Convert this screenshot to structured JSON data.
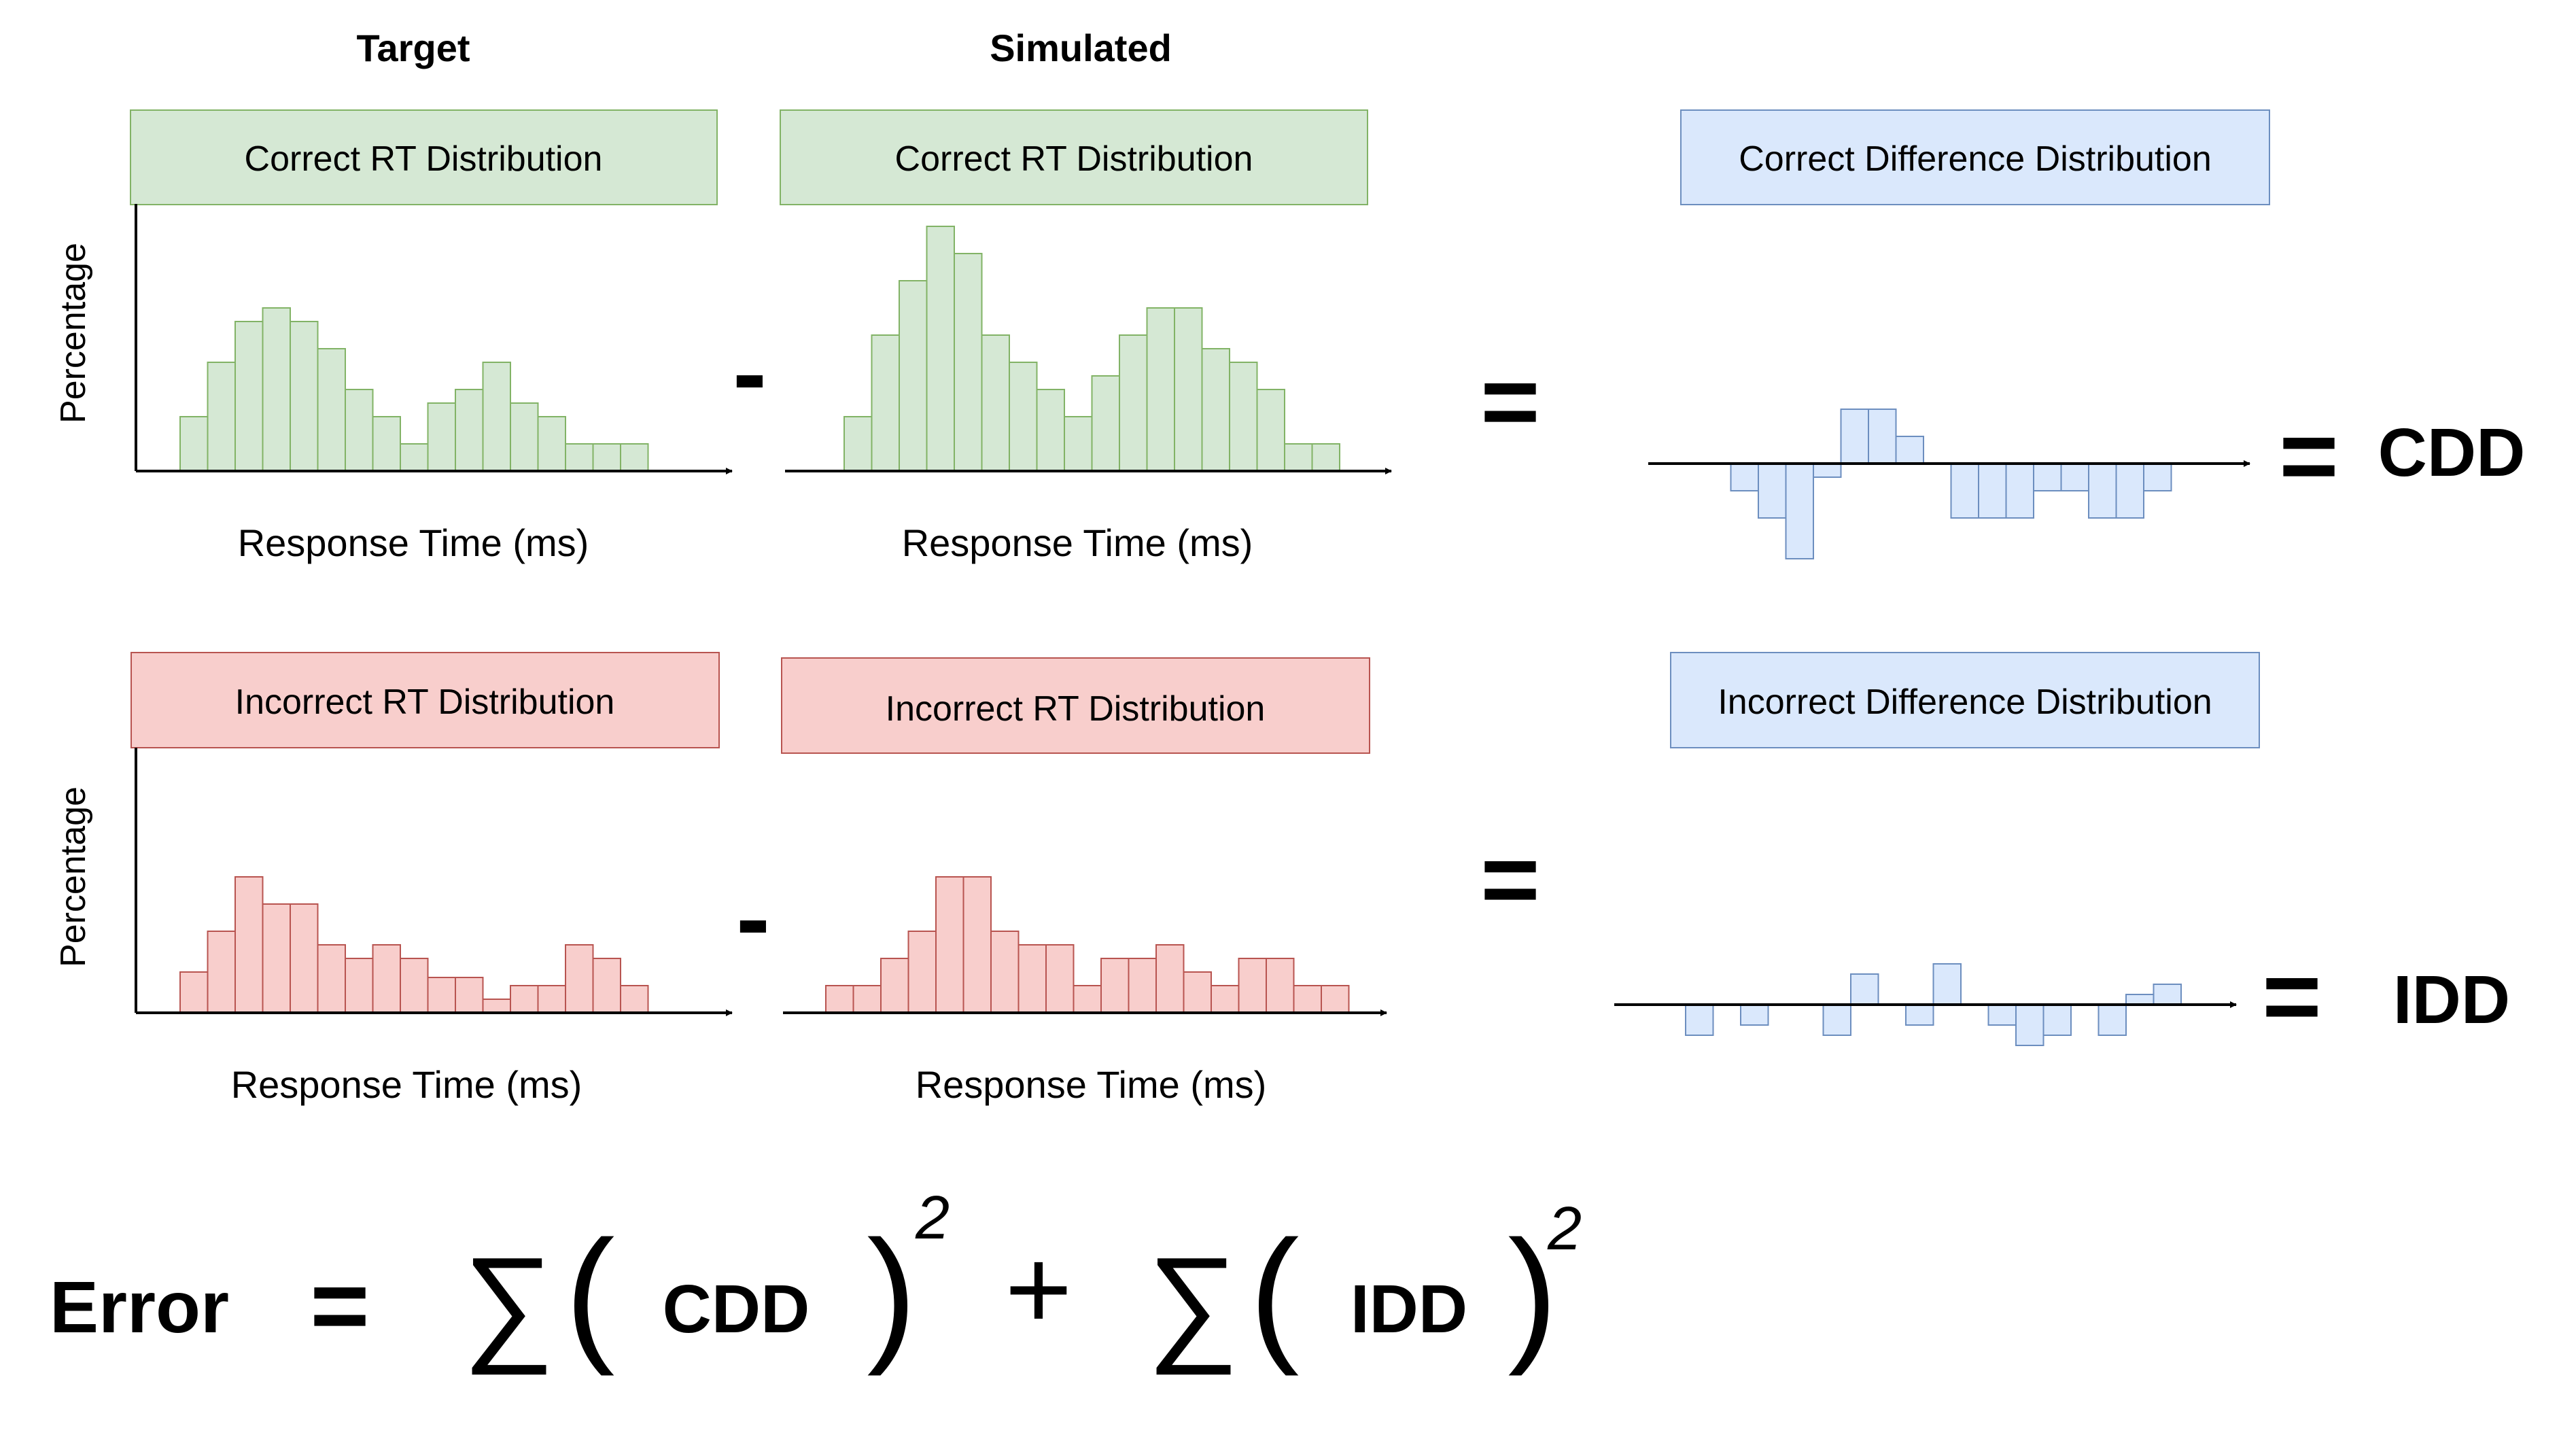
{
  "headers": {
    "target": "Target",
    "simulated": "Simulated"
  },
  "labels": {
    "correct_rt": "Correct RT Distribution",
    "incorrect_rt": "Incorrect RT Distribution",
    "correct_diff": "Correct Difference Distribution",
    "incorrect_diff": "Incorrect Difference Distribution",
    "xlabel": "Response Time (ms)",
    "ylabel": "Percentage"
  },
  "operators": {
    "minus": "-",
    "equals": "=",
    "plus": "+",
    "sum": "∑",
    "lparen": "(",
    "rparen": ")",
    "exp": "2"
  },
  "results": {
    "cdd": "CDD",
    "idd": "IDD"
  },
  "formula": {
    "error": "Error",
    "cdd": "CDD",
    "idd": "IDD"
  },
  "colors": {
    "green_fill": "#d5e8d4",
    "green_stroke": "#82b366",
    "red_fill": "#f8cecc",
    "red_stroke": "#b85450",
    "blue_fill": "#dae8fc",
    "blue_stroke": "#6c8ebf"
  },
  "chart_data": [
    {
      "id": "target-correct",
      "type": "bar",
      "values": [
        2,
        4,
        5.5,
        6,
        5.5,
        4.5,
        3,
        2,
        1,
        2.5,
        3,
        4,
        2.5,
        2,
        1,
        1,
        1
      ]
    },
    {
      "id": "sim-correct",
      "type": "bar",
      "values": [
        2,
        5,
        7,
        9,
        8,
        5,
        4,
        3,
        2,
        3.5,
        5,
        6,
        6,
        4.5,
        4,
        3,
        1,
        1
      ]
    },
    {
      "id": "target-incorrect",
      "type": "bar",
      "values": [
        1.5,
        3,
        5,
        4,
        4,
        2.5,
        2,
        2.5,
        2,
        1.3,
        1.3,
        0.5,
        1,
        1,
        2.5,
        2,
        1
      ]
    },
    {
      "id": "sim-incorrect",
      "type": "bar",
      "values": [
        1,
        1,
        2,
        3,
        5,
        5,
        3,
        2.5,
        2.5,
        1,
        2,
        2,
        2.5,
        1.5,
        1,
        2,
        2,
        1,
        1
      ]
    },
    {
      "id": "cdd",
      "type": "bar",
      "values": [
        0,
        0,
        0,
        -1,
        -2,
        -3.5,
        -0.5,
        2,
        2,
        1,
        0,
        -2,
        -2,
        -2,
        -1,
        -1,
        -2,
        -2,
        -1
      ]
    },
    {
      "id": "idd",
      "type": "bar",
      "values": [
        -1.5,
        0,
        -1,
        0,
        0,
        -1.5,
        1.5,
        0,
        -1,
        2,
        0,
        -1,
        -2,
        -1.5,
        0,
        -1.5,
        0.5,
        1
      ]
    }
  ]
}
